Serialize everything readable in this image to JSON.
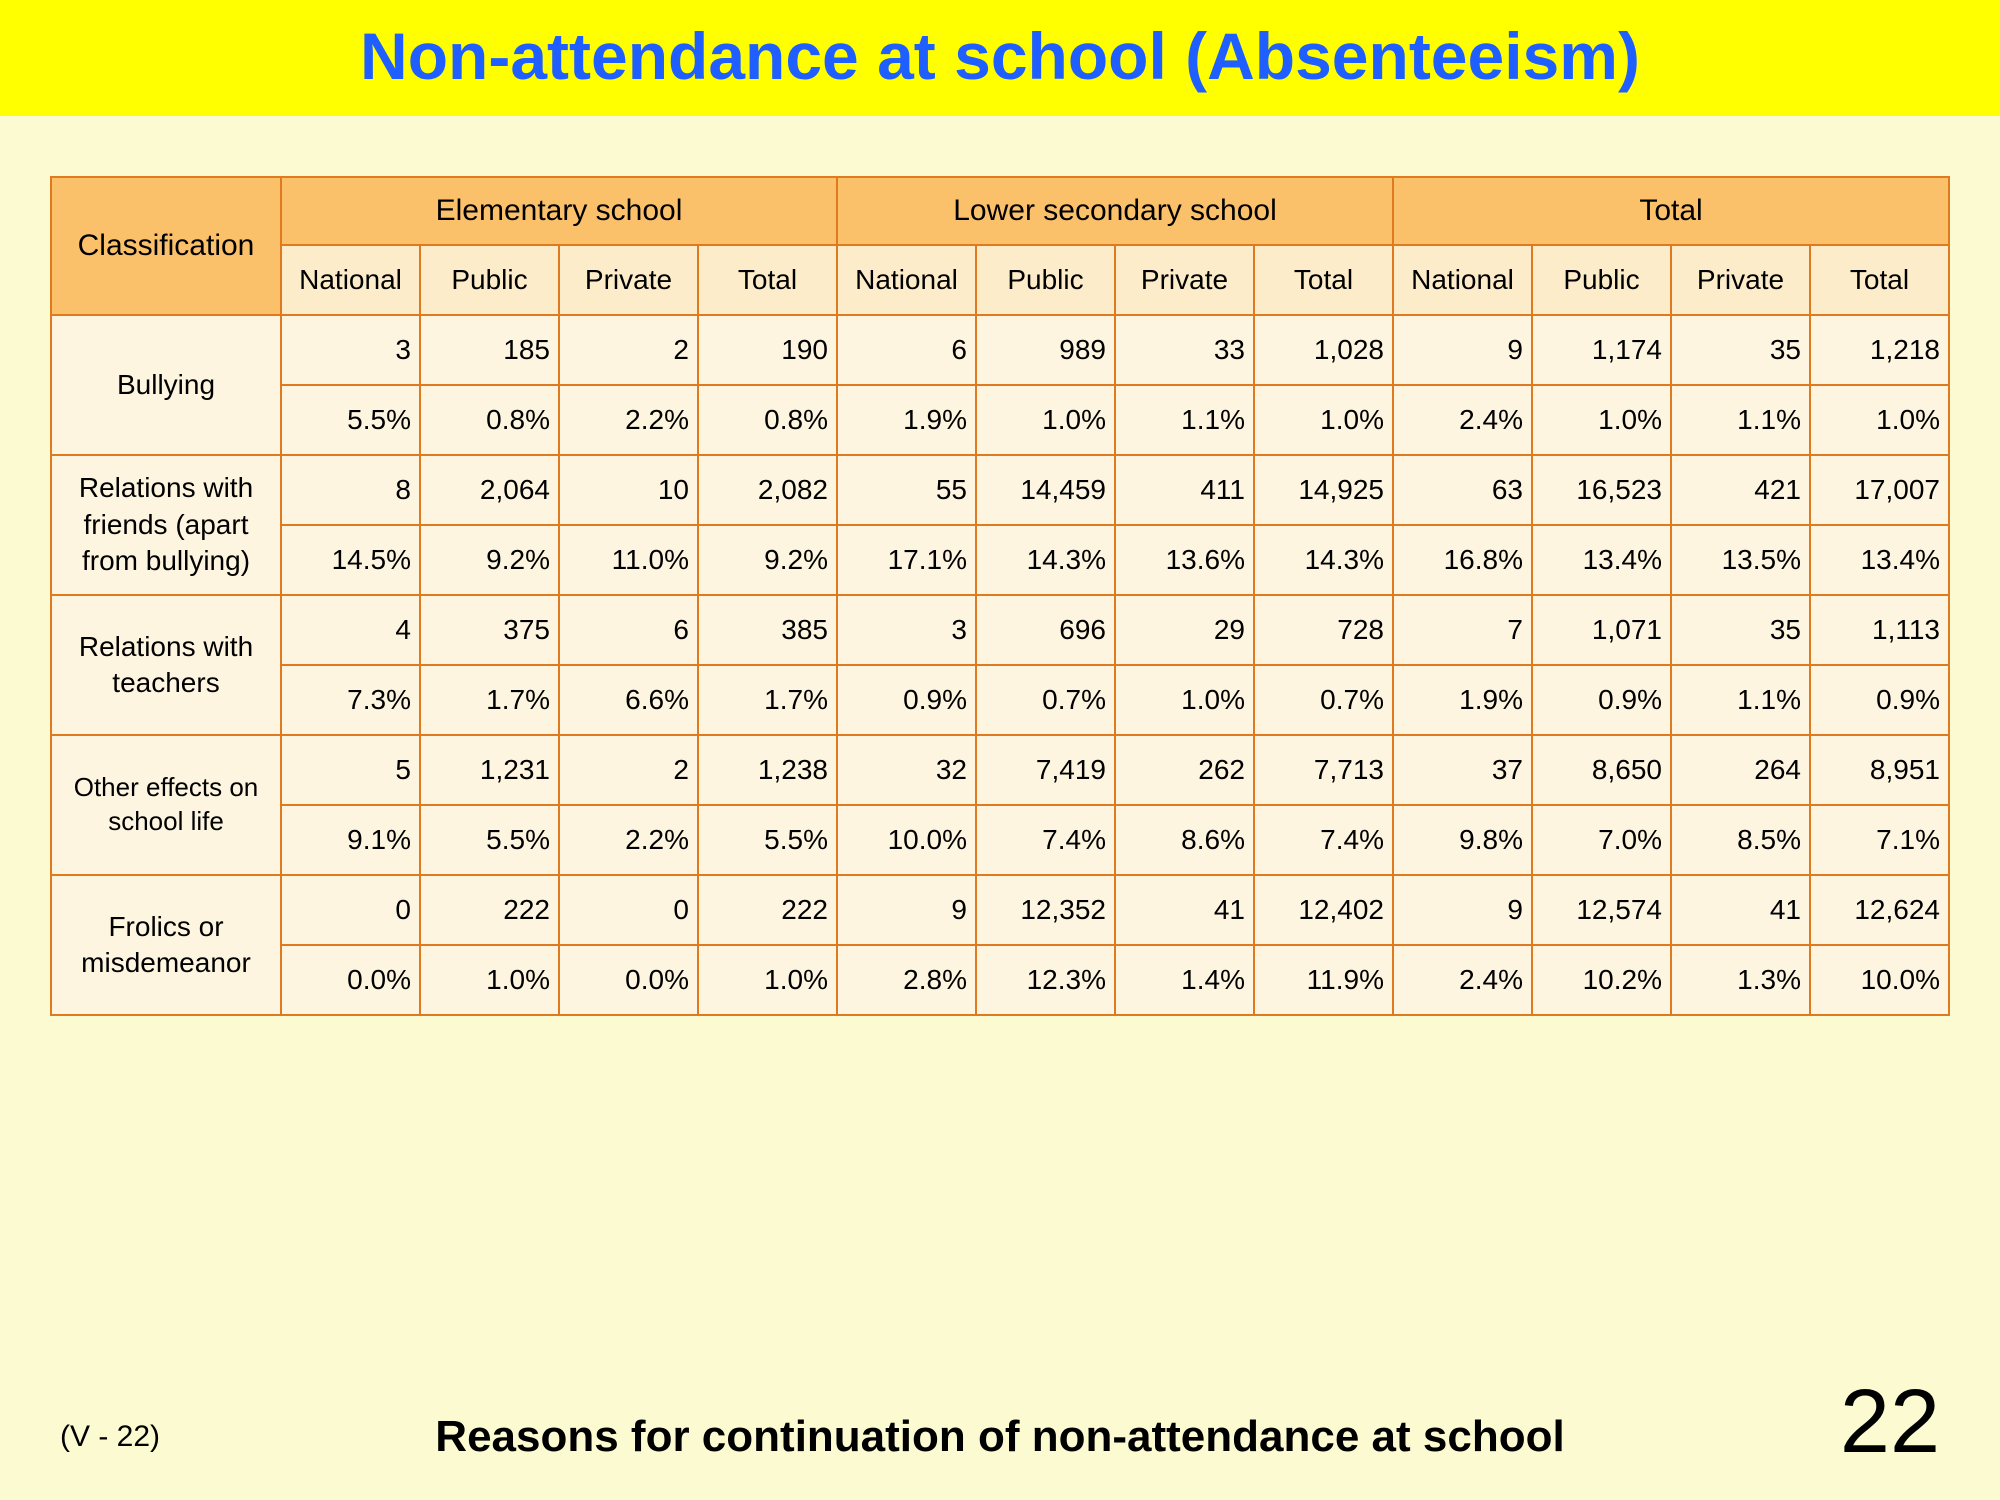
{
  "title": "Non-attendance at school (Absenteeism)",
  "footer_ref": "(V - 22)",
  "footer_caption": "Reasons for continuation of non-attendance at school",
  "page_number": "22",
  "colors": {
    "page_bg": "#fbfad0",
    "title_bg": "#ffff00",
    "title_fg": "#1f5fff",
    "border": "#e07a1f",
    "header_main_bg": "#fbc06a",
    "header_sub_bg": "#fdecc9",
    "cell_bg": "#fdf5df"
  },
  "header": {
    "classification": "Classification",
    "groups": [
      "Elementary school",
      "Lower secondary school",
      "Total"
    ],
    "subcols": [
      "National",
      "Public",
      "Private",
      "Total"
    ]
  },
  "rows": [
    {
      "label": "Bullying",
      "label_small": false,
      "counts": [
        "3",
        "185",
        "2",
        "190",
        "6",
        "989",
        "33",
        "1,028",
        "9",
        "1,174",
        "35",
        "1,218"
      ],
      "pct": [
        "5.5%",
        "0.8%",
        "2.2%",
        "0.8%",
        "1.9%",
        "1.0%",
        "1.1%",
        "1.0%",
        "2.4%",
        "1.0%",
        "1.1%",
        "1.0%"
      ]
    },
    {
      "label": "Relations with friends (apart from bullying)",
      "label_small": false,
      "counts": [
        "8",
        "2,064",
        "10",
        "2,082",
        "55",
        "14,459",
        "411",
        "14,925",
        "63",
        "16,523",
        "421",
        "17,007"
      ],
      "pct": [
        "14.5%",
        "9.2%",
        "11.0%",
        "9.2%",
        "17.1%",
        "14.3%",
        "13.6%",
        "14.3%",
        "16.8%",
        "13.4%",
        "13.5%",
        "13.4%"
      ]
    },
    {
      "label": "Relations with teachers",
      "label_small": false,
      "counts": [
        "4",
        "375",
        "6",
        "385",
        "3",
        "696",
        "29",
        "728",
        "7",
        "1,071",
        "35",
        "1,113"
      ],
      "pct": [
        "7.3%",
        "1.7%",
        "6.6%",
        "1.7%",
        "0.9%",
        "0.7%",
        "1.0%",
        "0.7%",
        "1.9%",
        "0.9%",
        "1.1%",
        "0.9%"
      ]
    },
    {
      "label": "Other effects on school life",
      "label_small": true,
      "counts": [
        "5",
        "1,231",
        "2",
        "1,238",
        "32",
        "7,419",
        "262",
        "7,713",
        "37",
        "8,650",
        "264",
        "8,951"
      ],
      "pct": [
        "9.1%",
        "5.5%",
        "2.2%",
        "5.5%",
        "10.0%",
        "7.4%",
        "8.6%",
        "7.4%",
        "9.8%",
        "7.0%",
        "8.5%",
        "7.1%"
      ]
    },
    {
      "label": "Frolics or misdemeanor",
      "label_small": false,
      "counts": [
        "0",
        "222",
        "0",
        "222",
        "9",
        "12,352",
        "41",
        "12,402",
        "9",
        "12,574",
        "41",
        "12,624"
      ],
      "pct": [
        "0.0%",
        "1.0%",
        "0.0%",
        "1.0%",
        "2.8%",
        "12.3%",
        "1.4%",
        "11.9%",
        "2.4%",
        "10.2%",
        "1.3%",
        "10.0%"
      ]
    }
  ]
}
